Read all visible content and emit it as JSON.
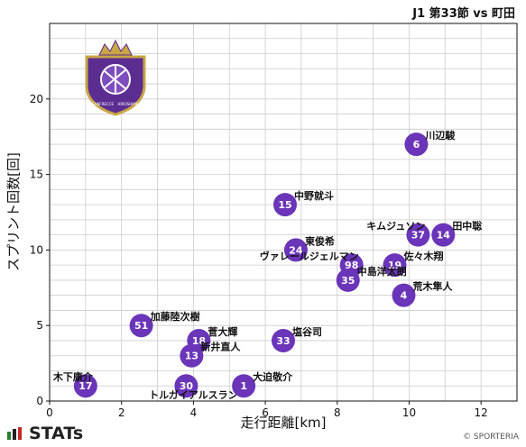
{
  "header": {
    "match": "J1 第33節 vs 町田"
  },
  "footer": {
    "brand": "STATs",
    "copyright": "© SPORTERIA"
  },
  "crest": {
    "text_left": "SANFRECCE",
    "text_right": "HIROSHIMA"
  },
  "colors": {
    "point": "#6a35b8",
    "grid": "#cccccc",
    "crest_purple": "#5b2d91",
    "crest_gold": "#c9a646"
  },
  "chart_data": {
    "type": "scatter",
    "title": "",
    "xlabel": "走行距離[km]",
    "ylabel": "スプリント回数[回]",
    "xlim": [
      0,
      13
    ],
    "ylim": [
      0,
      25
    ],
    "xticks": [
      0,
      2,
      4,
      6,
      8,
      10,
      12
    ],
    "yticks": [
      0,
      5,
      10,
      15,
      20
    ],
    "grid": true,
    "points": [
      {
        "number": "6",
        "name": "川辺駿",
        "x": 10.2,
        "y": 17,
        "label_pos": "right"
      },
      {
        "number": "15",
        "name": "中野就斗",
        "x": 6.55,
        "y": 13,
        "label_pos": "right"
      },
      {
        "number": "37",
        "name": "キムジュソン",
        "x": 10.25,
        "y": 11,
        "label_pos": "left"
      },
      {
        "number": "14",
        "name": "田中聡",
        "x": 10.95,
        "y": 11,
        "label_pos": "right"
      },
      {
        "number": "24",
        "name": "東俊希",
        "x": 6.85,
        "y": 10,
        "label_pos": "right"
      },
      {
        "number": "98",
        "name": "ヴァレールジェルマン",
        "x": 8.4,
        "y": 9,
        "label_pos": "left"
      },
      {
        "number": "19",
        "name": "佐々木翔",
        "x": 9.6,
        "y": 9,
        "label_pos": "right"
      },
      {
        "number": "35",
        "name": "中島洋太朗",
        "x": 8.3,
        "y": 8,
        "label_pos": "right"
      },
      {
        "number": "4",
        "name": "荒木隼人",
        "x": 9.85,
        "y": 7,
        "label_pos": "right"
      },
      {
        "number": "51",
        "name": "加藤陸次樹",
        "x": 2.55,
        "y": 5,
        "label_pos": "right"
      },
      {
        "number": "18",
        "name": "菅大輝",
        "x": 4.15,
        "y": 4,
        "label_pos": "right"
      },
      {
        "number": "33",
        "name": "塩谷司",
        "x": 6.5,
        "y": 4,
        "label_pos": "right"
      },
      {
        "number": "13",
        "name": "新井直人",
        "x": 3.95,
        "y": 3,
        "label_pos": "right"
      },
      {
        "number": "17",
        "name": "木下康介",
        "x": 1.0,
        "y": 1,
        "label_pos": "left"
      },
      {
        "number": "30",
        "name": "トルガイアルスラン",
        "x": 3.8,
        "y": 1,
        "label_pos": "below"
      },
      {
        "number": "1",
        "name": "大迫敬介",
        "x": 5.4,
        "y": 1,
        "label_pos": "right"
      }
    ]
  }
}
